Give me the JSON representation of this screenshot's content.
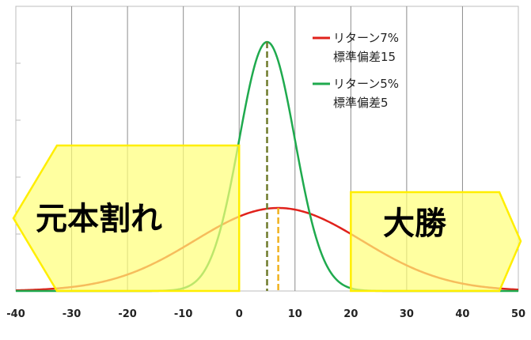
{
  "chart_data": {
    "type": "line",
    "xlim": [
      -40,
      50
    ],
    "x_ticks": [
      -40,
      -30,
      -20,
      -10,
      0,
      10,
      20,
      30,
      40,
      50
    ],
    "x_tick_labels": [
      "-40",
      "-30",
      "-20",
      "-10",
      "0",
      "10",
      "20",
      "30",
      "40",
      "50"
    ],
    "grid": "vertical",
    "legend_position": "top-right",
    "series": [
      {
        "name_line1": "リターン7%",
        "name_line2": "標準偏差15",
        "mean": 7,
        "sd": 15,
        "color": "#e0211b"
      },
      {
        "name_line1": "リターン5%",
        "name_line2": "標準偏差5",
        "mean": 5,
        "sd": 5,
        "color": "#1faa4e"
      }
    ],
    "mean_markers": [
      {
        "x": 5,
        "color": "#6e7a2a"
      },
      {
        "x": 7,
        "color": "#f0b21e"
      }
    ],
    "shaded_regions": [
      {
        "label": "元本割れ",
        "from": -40,
        "to": 0,
        "direction": "left",
        "fill": "#ffff77",
        "stroke": "#ffee00"
      },
      {
        "label": "大勝",
        "from": 20,
        "to": 50,
        "direction": "right",
        "fill": "#ffff77",
        "stroke": "#ffee00"
      }
    ]
  }
}
